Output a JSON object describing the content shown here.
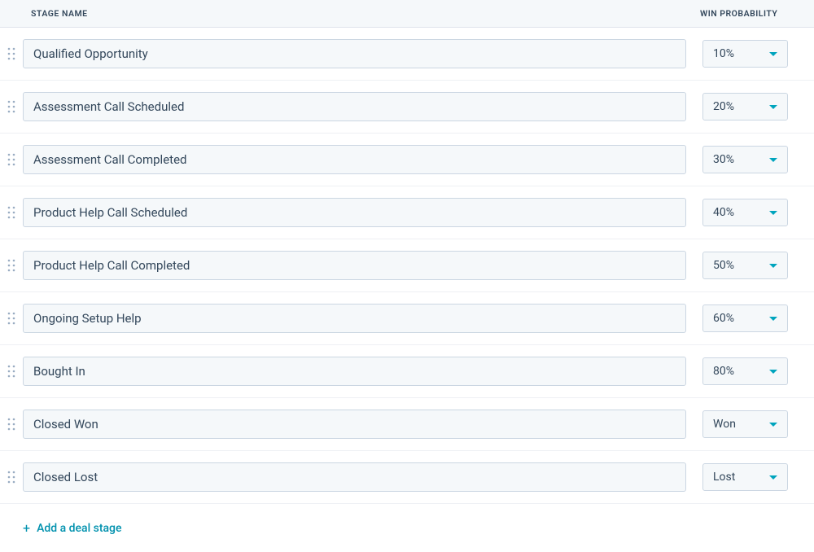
{
  "headers": {
    "stage_name": "STAGE NAME",
    "win_probability": "WIN PROBABILITY"
  },
  "stages": [
    {
      "name": "Qualified Opportunity",
      "probability": "10%"
    },
    {
      "name": "Assessment Call Scheduled",
      "probability": "20%"
    },
    {
      "name": "Assessment Call Completed",
      "probability": "30%"
    },
    {
      "name": "Product Help Call Scheduled",
      "probability": "40%"
    },
    {
      "name": "Product Help Call Completed",
      "probability": "50%"
    },
    {
      "name": "Ongoing Setup Help",
      "probability": "60%"
    },
    {
      "name": "Bought In",
      "probability": "80%"
    },
    {
      "name": "Closed Won",
      "probability": "Won"
    },
    {
      "name": "Closed Lost",
      "probability": "Lost"
    }
  ],
  "add_stage_label": "Add a deal stage",
  "colors": {
    "header_bg": "#f5f8fa",
    "input_bg": "#f5f8fa",
    "input_border": "#cbd6e2",
    "row_border": "#eef0f4",
    "text": "#33475b",
    "accent_teal": "#00a4bd",
    "link": "#0091ae",
    "drag_dot": "#99acc2"
  }
}
